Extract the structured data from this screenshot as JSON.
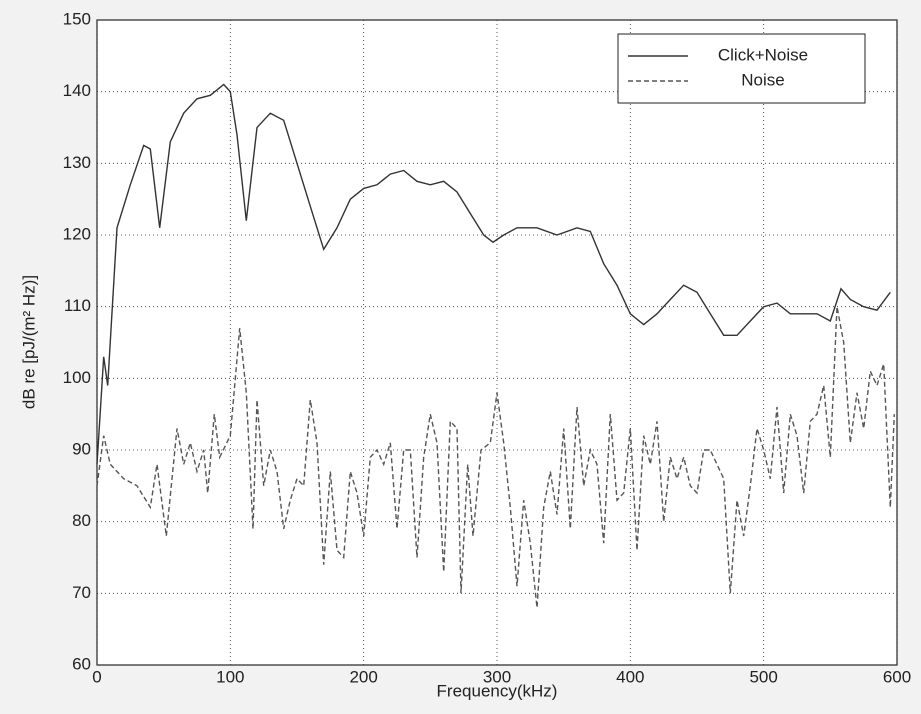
{
  "chart_data": {
    "type": "line",
    "xlabel": "Frequency(kHz)",
    "ylabel": "dB re [pJ/(m² Hz)]",
    "xlim": [
      0,
      600
    ],
    "xticks": [
      0,
      100,
      200,
      300,
      400,
      500,
      600
    ],
    "ylim": [
      60,
      150
    ],
    "yticks": [
      60,
      70,
      80,
      90,
      100,
      110,
      120,
      130,
      140,
      150
    ],
    "grid": true,
    "legend": "upper right",
    "series": [
      {
        "name": "Click+Noise",
        "color": "#333333",
        "dash": "solid",
        "x": [
          0,
          5,
          8,
          15,
          25,
          35,
          40,
          47,
          55,
          65,
          75,
          85,
          95,
          100,
          105,
          112,
          120,
          130,
          140,
          150,
          160,
          170,
          180,
          190,
          200,
          210,
          220,
          230,
          240,
          250,
          260,
          270,
          280,
          290,
          297,
          305,
          315,
          330,
          345,
          360,
          370,
          380,
          390,
          400,
          410,
          420,
          430,
          440,
          450,
          460,
          470,
          480,
          490,
          500,
          510,
          520,
          530,
          540,
          550,
          558,
          565,
          575,
          585,
          595
        ],
        "values": [
          88,
          103,
          99,
          121,
          127,
          132.5,
          132,
          121,
          133,
          137,
          139,
          139.5,
          141,
          140,
          134,
          122,
          135,
          137,
          136,
          130,
          124,
          118,
          121,
          125,
          126.5,
          127,
          128.5,
          129,
          127.5,
          127,
          127.5,
          126,
          123,
          120,
          119,
          120,
          121,
          121,
          120,
          121,
          120.5,
          116,
          113,
          109,
          107.5,
          109,
          111,
          113,
          112,
          109,
          106,
          106,
          108,
          110,
          110.5,
          109,
          109,
          109,
          108,
          112.5,
          111,
          110,
          109.5,
          112
        ]
      },
      {
        "name": "Noise",
        "color": "#555555",
        "dash": "dashed",
        "x": [
          0,
          5,
          10,
          20,
          30,
          40,
          45,
          52,
          60,
          65,
          70,
          75,
          80,
          83,
          88,
          92,
          100,
          107,
          112,
          117,
          120,
          125,
          130,
          135,
          140,
          145,
          150,
          155,
          160,
          165,
          170,
          175,
          180,
          185,
          190,
          195,
          200,
          205,
          210,
          215,
          220,
          225,
          230,
          235,
          240,
          245,
          250,
          255,
          260,
          265,
          270,
          273,
          278,
          282,
          288,
          295,
          300,
          305,
          310,
          315,
          320,
          325,
          330,
          335,
          340,
          345,
          350,
          355,
          360,
          365,
          370,
          375,
          380,
          385,
          390,
          395,
          400,
          405,
          410,
          415,
          420,
          425,
          430,
          435,
          440,
          445,
          450,
          455,
          460,
          465,
          470,
          475,
          480,
          485,
          490,
          495,
          500,
          505,
          510,
          515,
          520,
          525,
          530,
          535,
          540,
          545,
          550,
          555,
          560,
          565,
          570,
          575,
          580,
          585,
          590,
          595,
          598
        ],
        "values": [
          85,
          92,
          88,
          86,
          85,
          82,
          88,
          78,
          93,
          88,
          91,
          87,
          90,
          84,
          95,
          89,
          92,
          107,
          98,
          79,
          97,
          85,
          90,
          87,
          79,
          83,
          86,
          85,
          97,
          91,
          74,
          87,
          76,
          75,
          87,
          84,
          78,
          89,
          90,
          88,
          91,
          79,
          90,
          90,
          75,
          89,
          95,
          91,
          73,
          94,
          93,
          70,
          88,
          78,
          90,
          91,
          98,
          91,
          82,
          71,
          83,
          77,
          68,
          82,
          87,
          81,
          93,
          79,
          96,
          85,
          90,
          88,
          77,
          95,
          83,
          84,
          93,
          76,
          92,
          88,
          94,
          80,
          89,
          86,
          89,
          85,
          84,
          90,
          90,
          88,
          86,
          70,
          83,
          78,
          85,
          93,
          90,
          86,
          96,
          84,
          95,
          92,
          84,
          94,
          95,
          99,
          89,
          110,
          105,
          91,
          98,
          93,
          101,
          99,
          102,
          82,
          95
        ]
      }
    ]
  }
}
